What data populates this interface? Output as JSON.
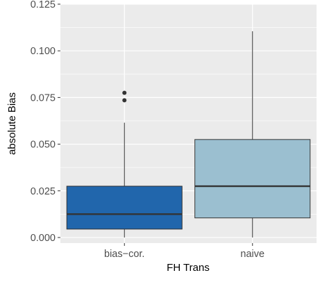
{
  "chart_data": {
    "type": "boxplot",
    "xlabel": "FH Trans",
    "ylabel": "absolute Bias",
    "ylim": [
      -0.003,
      0.125
    ],
    "yticks": [
      0.0,
      0.025,
      0.05,
      0.075,
      0.1,
      0.125
    ],
    "ytick_labels": [
      "0.000",
      "0.025",
      "0.050",
      "0.075",
      "0.100",
      "0.125"
    ],
    "categories": [
      "bias−cor.",
      "naive"
    ],
    "boxes": [
      {
        "category": "bias−cor.",
        "whisker_low": 0.0,
        "q1": 0.0045,
        "median": 0.0125,
        "q3": 0.0275,
        "whisker_high": 0.0615,
        "outliers": [
          0.0735,
          0.0775
        ],
        "fill": "#2166ac"
      },
      {
        "category": "naive",
        "whisker_low": 0.0,
        "q1": 0.0105,
        "median": 0.0275,
        "q3": 0.0525,
        "whisker_high": 0.1105,
        "outliers": [],
        "fill": "#9bbfd0"
      }
    ],
    "grid": true,
    "panel_background": "#ebebeb",
    "gridline_color": "#ffffff",
    "outline_color": "#333333"
  }
}
